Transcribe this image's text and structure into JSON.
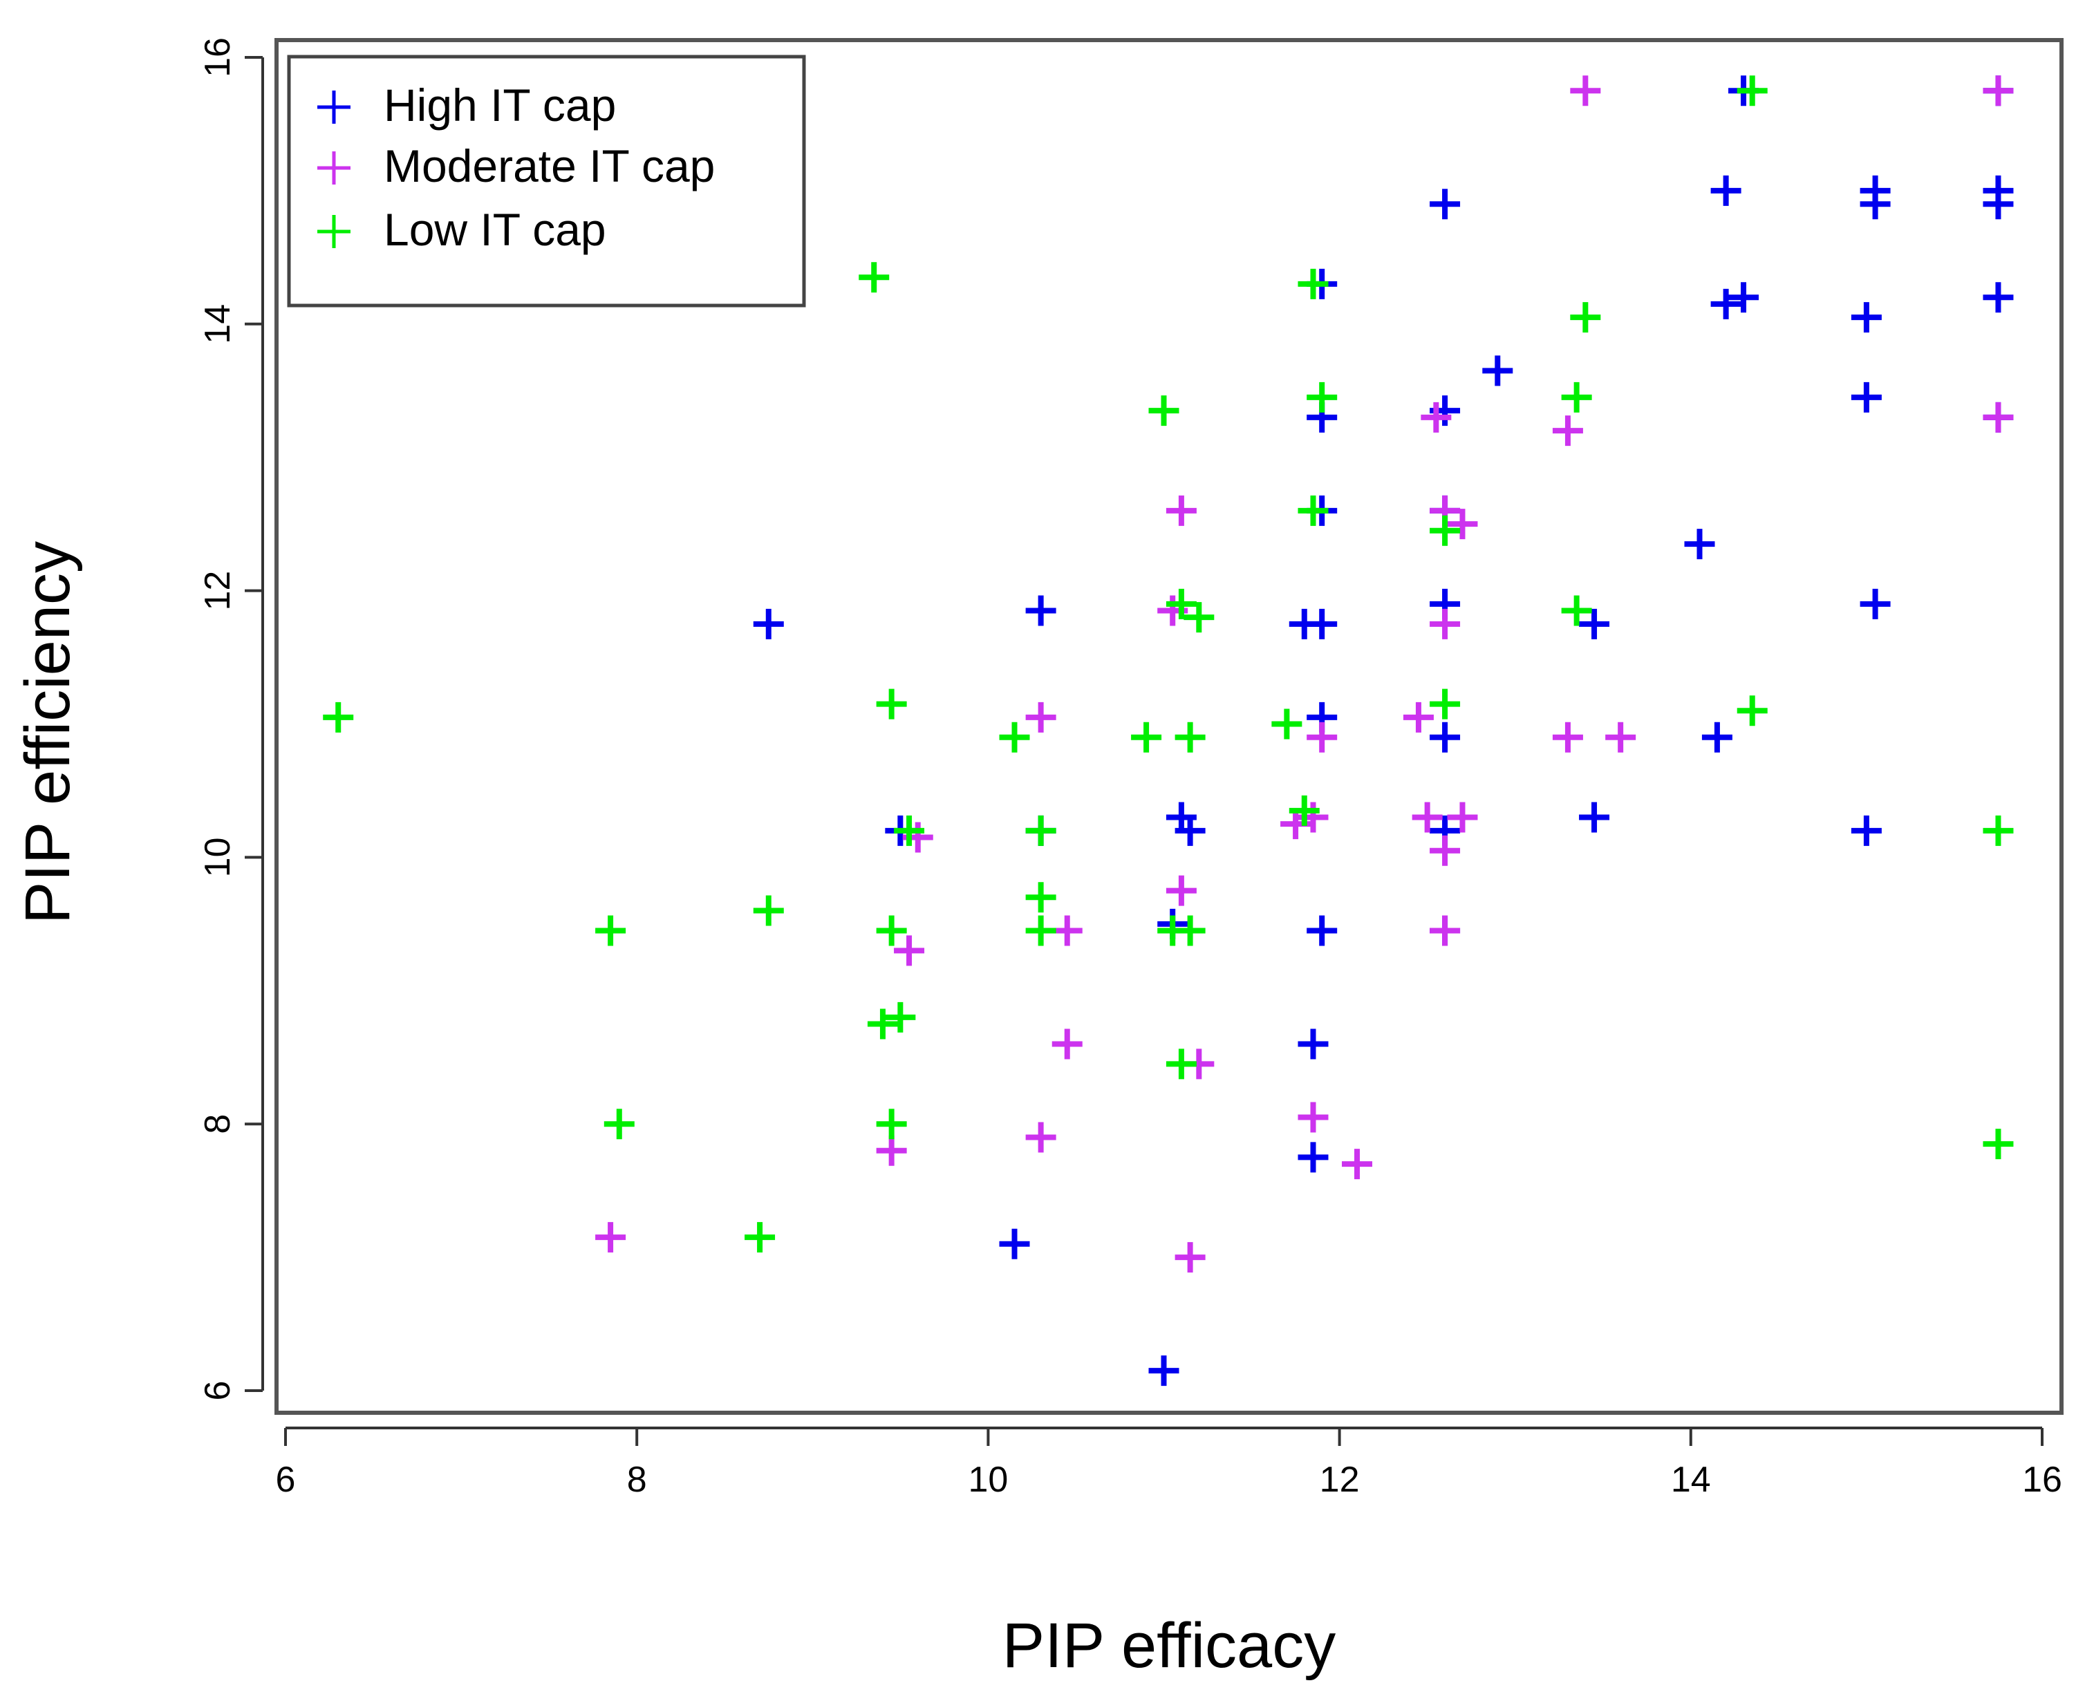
{
  "chart_data": {
    "type": "scatter",
    "title": "",
    "xlabel": "PIP efficacy",
    "ylabel": "PIP efficiency",
    "xlim": [
      6,
      16
    ],
    "ylim": [
      6,
      16
    ],
    "xticks": [
      6,
      8,
      10,
      12,
      14,
      16
    ],
    "yticks": [
      6,
      8,
      10,
      12,
      14,
      16
    ],
    "grid": false,
    "legend": "top-left",
    "marker": "+",
    "series": [
      {
        "name": "High IT cap",
        "color": "#0000ee",
        "points": [
          [
            8.75,
            11.75
          ],
          [
            9.5,
            10.2
          ],
          [
            10.3,
            11.85
          ],
          [
            10.3,
            10.2
          ],
          [
            10.15,
            7.1
          ],
          [
            11.0,
            6.15
          ],
          [
            11.1,
            10.3
          ],
          [
            11.15,
            10.2
          ],
          [
            11.05,
            9.5
          ],
          [
            11.8,
            11.75
          ],
          [
            11.9,
            11.75
          ],
          [
            11.9,
            12.6
          ],
          [
            11.9,
            13.3
          ],
          [
            11.9,
            14.3
          ],
          [
            11.9,
            11.05
          ],
          [
            11.9,
            9.45
          ],
          [
            11.85,
            8.6
          ],
          [
            11.85,
            7.75
          ],
          [
            12.6,
            14.9
          ],
          [
            12.6,
            13.35
          ],
          [
            12.6,
            12.6
          ],
          [
            12.6,
            11.9
          ],
          [
            12.6,
            10.9
          ],
          [
            12.6,
            10.2
          ],
          [
            12.6,
            9.45
          ],
          [
            12.9,
            13.65
          ],
          [
            13.45,
            11.75
          ],
          [
            13.45,
            10.3
          ],
          [
            14.05,
            12.35
          ],
          [
            14.15,
            10.9
          ],
          [
            14.2,
            15.0
          ],
          [
            14.2,
            14.15
          ],
          [
            14.3,
            14.2
          ],
          [
            14.3,
            15.75
          ],
          [
            15.0,
            13.45
          ],
          [
            15.0,
            14.05
          ],
          [
            15.0,
            10.2
          ],
          [
            15.05,
            11.9
          ],
          [
            15.05,
            15.0
          ],
          [
            15.05,
            14.9
          ],
          [
            15.75,
            15.75
          ],
          [
            15.75,
            15.0
          ],
          [
            15.75,
            14.9
          ],
          [
            15.75,
            14.2
          ],
          [
            15.75,
            13.3
          ]
        ]
      },
      {
        "name": "Moderate IT  cap",
        "color": "#cc33ee",
        "points": [
          [
            7.85,
            7.15
          ],
          [
            9.45,
            7.8
          ],
          [
            9.55,
            9.3
          ],
          [
            9.6,
            10.15
          ],
          [
            10.3,
            11.05
          ],
          [
            10.3,
            7.9
          ],
          [
            10.45,
            9.45
          ],
          [
            10.45,
            8.6
          ],
          [
            11.05,
            11.85
          ],
          [
            11.1,
            12.6
          ],
          [
            11.1,
            9.75
          ],
          [
            11.15,
            7.0
          ],
          [
            11.2,
            8.45
          ],
          [
            11.75,
            10.25
          ],
          [
            11.85,
            10.3
          ],
          [
            11.85,
            8.05
          ],
          [
            11.9,
            10.9
          ],
          [
            12.1,
            7.7
          ],
          [
            12.45,
            11.05
          ],
          [
            12.5,
            10.3
          ],
          [
            12.55,
            13.3
          ],
          [
            12.6,
            12.6
          ],
          [
            12.6,
            11.75
          ],
          [
            12.6,
            10.05
          ],
          [
            12.6,
            9.45
          ],
          [
            12.7,
            12.5
          ],
          [
            12.7,
            10.3
          ],
          [
            13.3,
            13.2
          ],
          [
            13.3,
            10.9
          ],
          [
            13.4,
            15.75
          ],
          [
            13.6,
            10.9
          ],
          [
            15.75,
            15.75
          ],
          [
            15.75,
            13.3
          ]
        ]
      },
      {
        "name": "Low IT cap",
        "color": "#00ee00",
        "points": [
          [
            6.3,
            11.05
          ],
          [
            7.85,
            9.45
          ],
          [
            7.9,
            8.0
          ],
          [
            8.7,
            7.15
          ],
          [
            8.75,
            9.6
          ],
          [
            9.35,
            14.35
          ],
          [
            9.4,
            8.75
          ],
          [
            9.45,
            9.45
          ],
          [
            9.45,
            8.0
          ],
          [
            9.45,
            11.15
          ],
          [
            9.5,
            8.8
          ],
          [
            9.55,
            10.2
          ],
          [
            10.15,
            10.9
          ],
          [
            10.3,
            10.2
          ],
          [
            10.3,
            9.7
          ],
          [
            10.3,
            9.45
          ],
          [
            10.9,
            10.9
          ],
          [
            11.0,
            13.35
          ],
          [
            11.05,
            9.45
          ],
          [
            11.1,
            11.9
          ],
          [
            11.1,
            8.45
          ],
          [
            11.15,
            10.9
          ],
          [
            11.15,
            9.45
          ],
          [
            11.2,
            11.8
          ],
          [
            11.7,
            11.0
          ],
          [
            11.8,
            10.35
          ],
          [
            11.85,
            14.3
          ],
          [
            11.85,
            12.6
          ],
          [
            11.9,
            13.45
          ],
          [
            12.6,
            12.45
          ],
          [
            12.6,
            11.15
          ],
          [
            13.35,
            13.45
          ],
          [
            13.35,
            11.85
          ],
          [
            13.4,
            14.05
          ],
          [
            14.35,
            15.75
          ],
          [
            14.35,
            11.1
          ],
          [
            15.75,
            10.2
          ],
          [
            15.75,
            7.85
          ]
        ]
      }
    ]
  }
}
